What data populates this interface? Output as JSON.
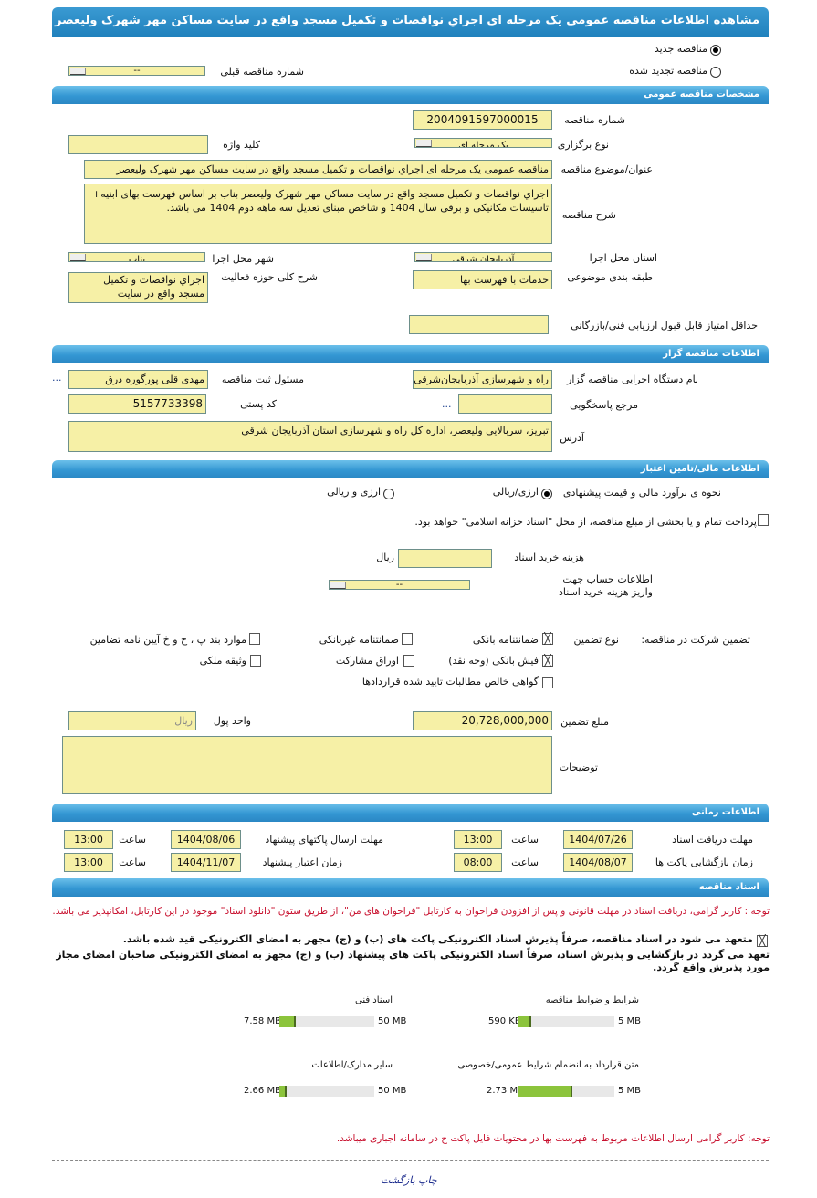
{
  "title": "مشاهده اطلاعات مناقصه عمومی یک مرحله ای اجراي نواقصات و تكميل مسجد واقع در سايت مساکن مهر شهرک وليعصر بناب",
  "tender_type": {
    "new": "مناقصه جدید",
    "renewed": "مناقصه تجدید شده",
    "selected": "new"
  },
  "previous_tender": {
    "label": "شماره مناقصه قبلی",
    "value": "--"
  },
  "general": {
    "header": "مشخصات مناقصه عمومی",
    "number_label": "شماره مناقصه",
    "number": "2004091597000015",
    "type_label": "نوع برگزاری",
    "type": "یک مرحله ای",
    "keyword_label": "کلید واژه",
    "keyword": "",
    "subject_label": "عنوان/موضوع مناقصه",
    "subject": "مناقصه عمومی یک مرحله ای اجراي نواقصات و تكميل مسجد واقع در سايت مساکن مهر شهرک وليعصر",
    "desc_label": "شرح مناقصه",
    "desc": "اجراي نواقصات و تكميل مسجد واقع در سايت مساکن مهر شهرک وليعصر بناب بر اساس فهرست بهای ابنیه+ تاسیسات مکانیکی و برقی سال 1404 و شاخص مبنای تعدیل سه ماهه دوم 1404 می باشد.",
    "province_label": "استان محل اجرا",
    "province": "آذربایجان شرقی",
    "city_label": "شهر محل اجرا",
    "city": "بناب",
    "category_label": "طبقه بندی موضوعی",
    "category": "خدمات با فهرست بها",
    "activity_label": "شرح کلی حوزه فعالیت",
    "activity": "اجراي نواقصات و تكميل مسجد واقع در سايت",
    "min_score_label": "حداقل امتیاز قابل قبول ارزیابی فنی/بازرگانی",
    "min_score": ""
  },
  "organizer": {
    "header": "اطلاعات مناقصه گزار",
    "org_label": "نام دستگاه اجرایی مناقصه گزار",
    "org": "راه و شهرسازی آذربایجان‌شرقی",
    "resp_label": "مسئول ثبت مناقصه",
    "resp": "مهدی قلی پورگوره درق",
    "more": "...",
    "ref_label": "مرجع پاسخگویی",
    "ref": "",
    "postal_label": "کد پستی",
    "postal": "5157733398",
    "address_label": "آدرس",
    "address": "تبریز، سربالایی ولیعصر، اداره کل راه و شهرسازی استان آذربایجان شرقی"
  },
  "finance": {
    "header": "اطلاعات مالی/تامین اعتبار",
    "estimate_label": "نحوه ی برآورد مالی و قیمت پیشنهادی",
    "opt1": "ارزی/ریالی",
    "opt2": "ارزی و ریالی",
    "selected": "opt1",
    "treasury_text": "پرداخت تمام و یا بخشی از مبلغ مناقصه، از محل \"اسناد خزانه اسلامی\" خواهد بود.",
    "treasury_checked": false,
    "doc_cost_label": "هزینه خرید اسناد",
    "doc_cost": "",
    "currency": "ریال",
    "account_label": "اطلاعات حساب جهت واریز هزینه خرید اسناد",
    "account": "--"
  },
  "guarantee": {
    "label": "تضمین شرکت در مناقصه:",
    "type_label": "نوع تضمین",
    "options": [
      {
        "label": "ضمانتنامه بانکی",
        "checked": true
      },
      {
        "label": "ضمانتنامه غیربانکی",
        "checked": false
      },
      {
        "label": "موارد بند پ ، ح و خ آیین نامه تضامین",
        "checked": false
      },
      {
        "label": "فیش بانکی (وجه نقد)",
        "checked": true
      },
      {
        "label": "اوراق مشارکت",
        "checked": false
      },
      {
        "label": "وثیقه ملکی",
        "checked": false
      },
      {
        "label": "گواهی خالص مطالبات تایید شده قراردادها",
        "checked": false
      }
    ],
    "amount_label": "مبلغ تضمین",
    "amount": "20,728,000,000",
    "unit_label": "واحد پول",
    "unit": "ریال",
    "notes_label": "توضیحات",
    "notes": ""
  },
  "timing": {
    "header": "اطلاعات زمانی",
    "time_label": "ساعت",
    "doc_deadline_label": "مهلت دریافت اسناد",
    "doc_deadline": "1404/07/26",
    "doc_deadline_time": "13:00",
    "submit_label": "مهلت ارسال پاکتهای پیشنهاد",
    "submit": "1404/08/06",
    "submit_time": "13:00",
    "opening_label": "زمان بازگشایی پاکت ها",
    "opening": "1404/08/07",
    "opening_time": "08:00",
    "validity_label": "زمان اعتبار پیشنهاد",
    "validity": "1404/11/07",
    "validity_time": "13:00"
  },
  "documents": {
    "header": "اسناد مناقصه",
    "note": "توجه : کاربر گرامی، دریافت اسناد در مهلت قانونی و پس از افزودن فراخوان به کارتابل \"فراخوان های من\"، از طریق ستون \"دانلود اسناد\" موجود در این کارتابل، امکانپذیر می باشد.",
    "commit1": "متعهد می شود در اسناد مناقصه، صرفاً پذیرش اسناد الکترونیکی پاکت های (ب) و (ج) مجهز به امضای الکترونیکی قید شده باشد.",
    "commit2": "تعهد می گردد در بازگشایی و پذیرش اسناد، صرفاً اسناد الکترونیکی پاکت های پیشنهاد (ب) و (ج) مجهز به امضای الکترونیکی صاحبان امضای مجاز مورد پذیرش واقع گردد.",
    "files": [
      {
        "label": "شرایط و ضوابط مناقصه",
        "size": "590 KB",
        "max": "5 MB",
        "fill": 0.115
      },
      {
        "label": "اسناد فنی",
        "size": "7.58 MB",
        "max": "50 MB",
        "fill": 0.152
      },
      {
        "label": "متن قرارداد به انضمام شرایط عمومی/خصوصی",
        "size": "2.73 MB",
        "max": "5 MB",
        "fill": 0.546
      },
      {
        "label": "سایر مدارک/اطلاعات",
        "size": "2.66 MB",
        "max": "50 MB",
        "fill": 0.053
      }
    ],
    "footer_note": "توجه: کاربر گرامی ارسال اطلاعات مربوط به فهرست بها در محتویات فایل پاکت ج در سامانه اجباری میباشد."
  },
  "links": {
    "print": "چاپ",
    "back": "بازگشت"
  },
  "colors": {
    "header": "#2a87c4",
    "field": "#f6f0a6",
    "note": "#c8102e",
    "progress": "#8cc43c"
  }
}
